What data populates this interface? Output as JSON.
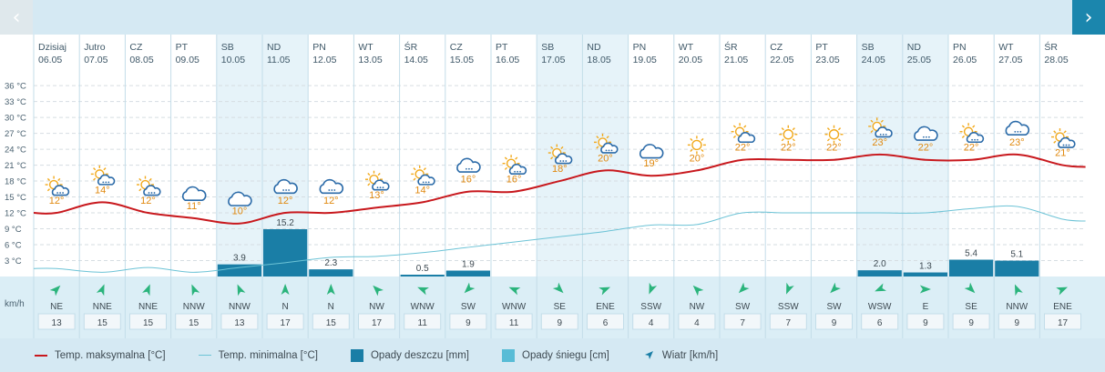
{
  "nav": {
    "prev_icon": "‹",
    "next_icon": "›"
  },
  "wind_unit_label": "km/h",
  "legend": {
    "tmax": "Temp. maksymalna [°C]",
    "tmin": "Temp. minimalna [°C]",
    "rain": "Opady deszczu [mm]",
    "snow": "Opady śniegu [cm]",
    "wind": "Wiatr [km/h]"
  },
  "colors": {
    "tmax_line": "#c8181d",
    "tmin_line": "#6cc3d6",
    "rain_bar": "#1a7ea6",
    "snow_bar": "#58bcd6",
    "weekend_band": "#e6f3f9",
    "temp_label": "#e0890f"
  },
  "chart_data": {
    "type": "line",
    "ylim": [
      0,
      38
    ],
    "yticks": [
      "3 °C",
      "6 °C",
      "9 °C",
      "12 °C",
      "15 °C",
      "18 °C",
      "21 °C",
      "24 °C",
      "27 °C",
      "30 °C",
      "33 °C",
      "36 °C"
    ],
    "grid": true,
    "legend_position": "bottom",
    "days": [
      {
        "dow": "Dzisiaj",
        "date": "06.05",
        "tmax": 12,
        "tmax_label": "12°",
        "tmin": 1.5,
        "rain": null,
        "rain_label": "",
        "icon": "sun-cloud-rain-icon",
        "wind_dir": "NE",
        "wind_deg": 45,
        "wind_speed": "13",
        "weekend": false
      },
      {
        "dow": "Jutro",
        "date": "07.05",
        "tmax": 14,
        "tmax_label": "14°",
        "tmin": 0.8,
        "rain": null,
        "rain_label": "",
        "icon": "sun-cloud-rain-icon",
        "wind_dir": "NNE",
        "wind_deg": 22,
        "wind_speed": "15",
        "weekend": false
      },
      {
        "dow": "CZ",
        "date": "08.05",
        "tmax": 12,
        "tmax_label": "12°",
        "tmin": 1.7,
        "rain": null,
        "rain_label": "",
        "icon": "sun-cloud-rain-icon",
        "wind_dir": "NNE",
        "wind_deg": 22,
        "wind_speed": "15",
        "weekend": false
      },
      {
        "dow": "PT",
        "date": "09.05",
        "tmax": 11,
        "tmax_label": "11°",
        "tmin": 0.8,
        "rain": null,
        "rain_label": "",
        "icon": "cloud-icon",
        "wind_dir": "NNW",
        "wind_deg": 337,
        "wind_speed": "15",
        "weekend": false
      },
      {
        "dow": "SB",
        "date": "10.05",
        "tmax": 10,
        "tmax_label": "10°",
        "tmin": 1.7,
        "rain": 3.9,
        "rain_label": "3.9",
        "icon": "cloud-icon",
        "wind_dir": "NNW",
        "wind_deg": 337,
        "wind_speed": "13",
        "weekend": true
      },
      {
        "dow": "ND",
        "date": "11.05",
        "tmax": 12,
        "tmax_label": "12°",
        "tmin": 2.6,
        "rain": 15.2,
        "rain_label": "15.2",
        "icon": "cloud-rain-icon",
        "wind_dir": "N",
        "wind_deg": 0,
        "wind_speed": "17",
        "weekend": true
      },
      {
        "dow": "PN",
        "date": "12.05",
        "tmax": 12,
        "tmax_label": "12°",
        "tmin": 3.6,
        "rain": 2.3,
        "rain_label": "2.3",
        "icon": "cloud-rain-icon",
        "wind_dir": "N",
        "wind_deg": 0,
        "wind_speed": "15",
        "weekend": false
      },
      {
        "dow": "WT",
        "date": "13.05",
        "tmax": 13,
        "tmax_label": "13°",
        "tmin": 3.8,
        "rain": null,
        "rain_label": "",
        "icon": "sun-cloud-rain-icon",
        "wind_dir": "NW",
        "wind_deg": 315,
        "wind_speed": "17",
        "weekend": false
      },
      {
        "dow": "ŚR",
        "date": "14.05",
        "tmax": 14,
        "tmax_label": "14°",
        "tmin": 4.5,
        "rain": 0.5,
        "rain_label": "0.5",
        "icon": "sun-cloud-rain-icon",
        "wind_dir": "WNW",
        "wind_deg": 292,
        "wind_speed": "11",
        "weekend": false
      },
      {
        "dow": "CZ",
        "date": "15.05",
        "tmax": 16,
        "tmax_label": "16°",
        "tmin": 5.5,
        "rain": 1.9,
        "rain_label": "1.9",
        "icon": "cloud-rain-icon",
        "wind_dir": "SW",
        "wind_deg": 225,
        "wind_speed": "9",
        "weekend": false
      },
      {
        "dow": "PT",
        "date": "16.05",
        "tmax": 16,
        "tmax_label": "16°",
        "tmin": 6.5,
        "rain": null,
        "rain_label": "",
        "icon": "sun-cloud-rain-icon",
        "wind_dir": "WNW",
        "wind_deg": 292,
        "wind_speed": "11",
        "weekend": false
      },
      {
        "dow": "SB",
        "date": "17.05",
        "tmax": 18,
        "tmax_label": "18°",
        "tmin": 7.5,
        "rain": null,
        "rain_label": "",
        "icon": "sun-cloud-rain-icon",
        "wind_dir": "SE",
        "wind_deg": 135,
        "wind_speed": "9",
        "weekend": true
      },
      {
        "dow": "ND",
        "date": "18.05",
        "tmax": 20,
        "tmax_label": "20°",
        "tmin": 8.5,
        "rain": null,
        "rain_label": "",
        "icon": "sun-cloud-rain-icon",
        "wind_dir": "ENE",
        "wind_deg": 67,
        "wind_speed": "6",
        "weekend": true
      },
      {
        "dow": "PN",
        "date": "19.05",
        "tmax": 19,
        "tmax_label": "19°",
        "tmin": 9.7,
        "rain": null,
        "rain_label": "",
        "icon": "cloud-icon",
        "wind_dir": "SSW",
        "wind_deg": 202,
        "wind_speed": "4",
        "weekend": false
      },
      {
        "dow": "WT",
        "date": "20.05",
        "tmax": 20,
        "tmax_label": "20°",
        "tmin": 9.8,
        "rain": null,
        "rain_label": "",
        "icon": "sun-icon",
        "wind_dir": "NW",
        "wind_deg": 315,
        "wind_speed": "4",
        "weekend": false
      },
      {
        "dow": "ŚR",
        "date": "21.05",
        "tmax": 22,
        "tmax_label": "22°",
        "tmin": 12,
        "rain": null,
        "rain_label": "",
        "icon": "sun-cloud-icon",
        "wind_dir": "SW",
        "wind_deg": 225,
        "wind_speed": "7",
        "weekend": false
      },
      {
        "dow": "CZ",
        "date": "22.05",
        "tmax": 22,
        "tmax_label": "22°",
        "tmin": 12,
        "rain": null,
        "rain_label": "",
        "icon": "sun-icon",
        "wind_dir": "SSW",
        "wind_deg": 202,
        "wind_speed": "7",
        "weekend": false
      },
      {
        "dow": "PT",
        "date": "23.05",
        "tmax": 22,
        "tmax_label": "22°",
        "tmin": 12,
        "rain": null,
        "rain_label": "",
        "icon": "sun-icon",
        "wind_dir": "SW",
        "wind_deg": 225,
        "wind_speed": "9",
        "weekend": false
      },
      {
        "dow": "SB",
        "date": "24.05",
        "tmax": 23,
        "tmax_label": "23°",
        "tmin": 12,
        "rain": 2.0,
        "rain_label": "2.0",
        "icon": "sun-cloud-rain-icon",
        "wind_dir": "WSW",
        "wind_deg": 247,
        "wind_speed": "6",
        "weekend": true
      },
      {
        "dow": "ND",
        "date": "25.05",
        "tmax": 22,
        "tmax_label": "22°",
        "tmin": 12,
        "rain": 1.3,
        "rain_label": "1.3",
        "icon": "cloud-rain-icon",
        "wind_dir": "E",
        "wind_deg": 90,
        "wind_speed": "9",
        "weekend": true
      },
      {
        "dow": "PN",
        "date": "26.05",
        "tmax": 22,
        "tmax_label": "22°",
        "tmin": 12.8,
        "rain": 5.4,
        "rain_label": "5.4",
        "icon": "sun-cloud-rain-icon",
        "wind_dir": "SE",
        "wind_deg": 135,
        "wind_speed": "9",
        "weekend": false
      },
      {
        "dow": "WT",
        "date": "27.05",
        "tmax": 23,
        "tmax_label": "23°",
        "tmin": 13.2,
        "rain": 5.1,
        "rain_label": "5.1",
        "icon": "cloud-rain-icon",
        "wind_dir": "NNW",
        "wind_deg": 337,
        "wind_speed": "9",
        "weekend": false
      },
      {
        "dow": "ŚR",
        "date": "28.05",
        "tmax": 21,
        "tmax_label": "21°",
        "tmin": 10.8,
        "rain": null,
        "rain_label": "",
        "icon": "sun-cloud-rain-icon",
        "wind_dir": "ENE",
        "wind_deg": 67,
        "wind_speed": "17",
        "weekend": false
      }
    ]
  }
}
